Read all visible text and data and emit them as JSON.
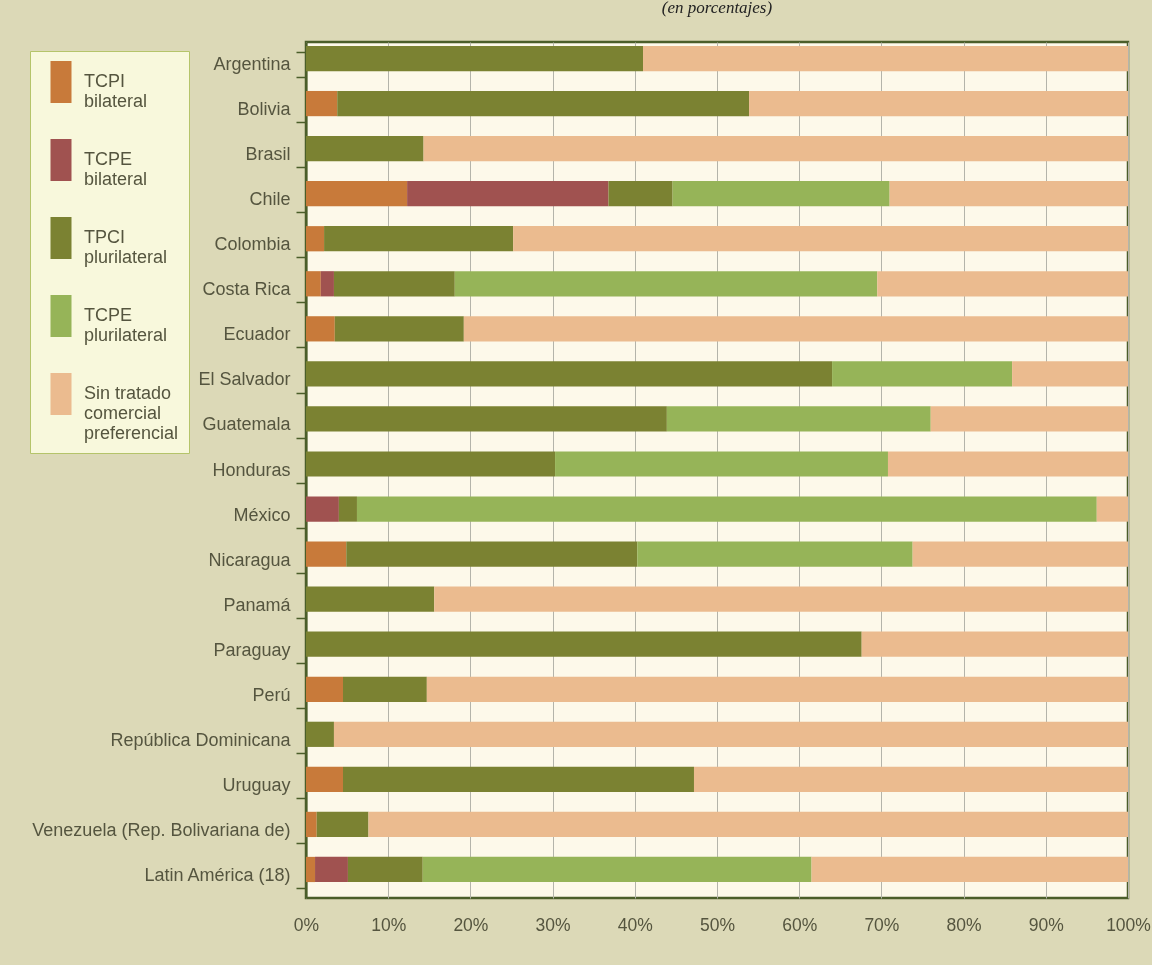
{
  "chart_data": {
    "type": "bar",
    "orientation": "horizontal",
    "stacked": true,
    "title": "(en porcentajes)",
    "categories": [
      "Argentina",
      "Bolivia",
      "Brasil",
      "Chile",
      "Colombia",
      "Costa Rica",
      "Ecuador",
      "El Salvador",
      "Guatemala",
      "Honduras",
      "México",
      "Nicaragua",
      "Panamá",
      "Paraguay",
      "Perú",
      "República Dominicana",
      "Uruguay",
      "Venezuela (Rep. Bolivariana de)",
      "Latin América (18)"
    ],
    "series": [
      {
        "name": "TCPI\nbilateral",
        "color": "#c87a3a",
        "values": [
          null,
          3.8,
          null,
          12.3,
          2.2,
          1.8,
          3.5,
          null,
          null,
          null,
          null,
          4.9,
          null,
          null,
          4.5,
          null,
          4.5,
          1.3,
          1.1
        ]
      },
      {
        "name": "TCPE\nbilateral",
        "color": "#a05250",
        "values": [
          null,
          null,
          null,
          24.5,
          null,
          1.6,
          null,
          null,
          null,
          null,
          4.0,
          null,
          null,
          null,
          null,
          null,
          null,
          null,
          4.0
        ]
      },
      {
        "name": "TPCI\nplurilateral",
        "color": "#7b8232",
        "values": [
          41.0,
          50.1,
          14.3,
          7.8,
          23.0,
          14.7,
          15.7,
          64.0,
          43.9,
          30.3,
          2.2,
          35.4,
          15.6,
          67.6,
          10.2,
          3.4,
          42.7,
          6.3,
          9.1
        ]
      },
      {
        "name": "TCPE\nplurilateral",
        "color": "#96b458",
        "values": [
          null,
          null,
          null,
          26.4,
          null,
          51.4,
          null,
          21.9,
          32.1,
          40.5,
          90.0,
          33.5,
          null,
          null,
          null,
          null,
          null,
          null,
          47.3
        ]
      },
      {
        "name": "Sin tratado\ncomercial\npreferencial",
        "color": "#ebbb8f",
        "values": [
          59.0,
          46.1,
          85.7,
          29.0,
          74.8,
          30.5,
          80.8,
          14.1,
          24.0,
          29.2,
          3.8,
          26.2,
          84.4,
          32.4,
          85.3,
          96.6,
          52.8,
          92.4,
          38.5
        ]
      }
    ],
    "xlim": [
      0,
      100
    ],
    "xticks": [
      {
        "value": 0,
        "label": "0%"
      },
      {
        "value": 10,
        "label": "10%"
      },
      {
        "value": 20,
        "label": "20%"
      },
      {
        "value": 30,
        "label": "30%"
      },
      {
        "value": 40,
        "label": "40%"
      },
      {
        "value": 50,
        "label": "50%"
      },
      {
        "value": 60,
        "label": "60%"
      },
      {
        "value": 70,
        "label": "70%"
      },
      {
        "value": 80,
        "label": "80%"
      },
      {
        "value": 90,
        "label": "90%"
      },
      {
        "value": 100,
        "label": "100%"
      }
    ],
    "grid": "x",
    "legend": "top left"
  }
}
